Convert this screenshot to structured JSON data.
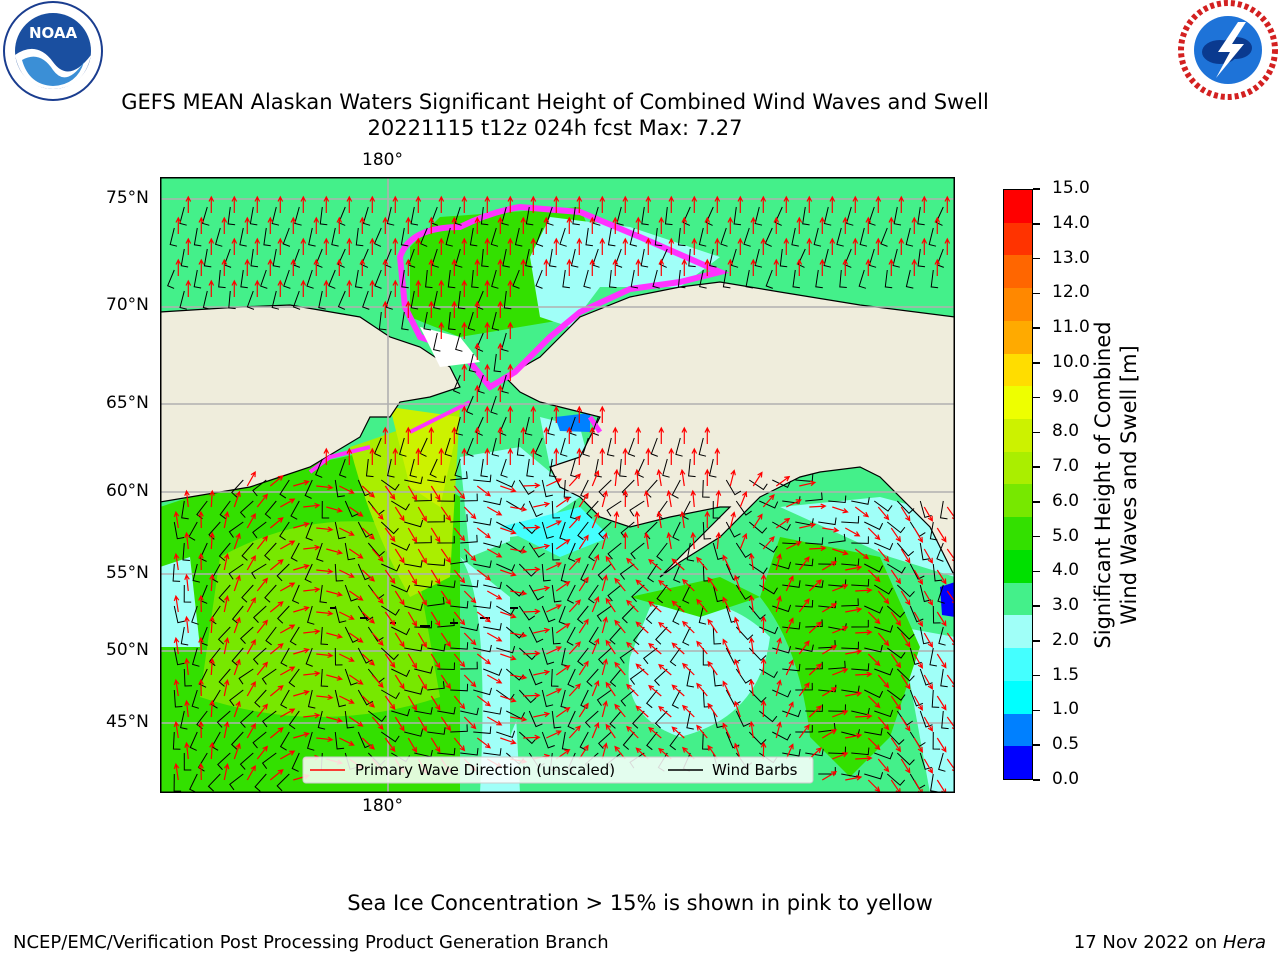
{
  "header": {
    "title_line1": "GEFS MEAN Alaskan Waters Significant Height of Combined Wind Waves and Swell",
    "title_line2": "20221115 t12z 024h fcst   Max: 7.27",
    "left_logo": {
      "icon": "noaa-logo-icon",
      "text": "NOAA"
    },
    "right_logo": {
      "icon": "nws-logo-icon"
    }
  },
  "map": {
    "lon_label_top": "180°",
    "lon_label_bottom": "180°",
    "lat_labels": [
      "75°N",
      "70°N",
      "65°N",
      "60°N",
      "55°N",
      "50°N",
      "45°N"
    ],
    "colors": {
      "land": "#efeddc",
      "sea_ice_edge": "#ff33ff",
      "wave_arrows": "#ff0000",
      "wind_barbs": "#000000",
      "grid": "#b0b0b0"
    },
    "legend": {
      "primary_wave": "Primary Wave Direction (unscaled)",
      "wind_barbs": "Wind Barbs"
    }
  },
  "colorbar": {
    "label_line1": "Significant Height of Combined",
    "label_line2": "Wind Waves and Swell [m]",
    "ticks": [
      "15.0",
      "14.0",
      "13.0",
      "12.0",
      "11.0",
      "10.0",
      "9.0",
      "8.0",
      "7.0",
      "6.0",
      "5.0",
      "4.0",
      "3.0",
      "2.0",
      "1.5",
      "1.0",
      "0.5",
      "0.0"
    ],
    "colors_top_to_bottom": [
      "#ff0000",
      "#ff3300",
      "#ff6600",
      "#ff8800",
      "#ffaa00",
      "#ffdd00",
      "#eeff00",
      "#ccf200",
      "#aaee00",
      "#77e800",
      "#33e000",
      "#00e000",
      "#44f08a",
      "#a0fff8",
      "#44ffff",
      "#00ffff",
      "#0080ff",
      "#0000ff"
    ]
  },
  "notes": {
    "sea_ice": "Sea Ice Concentration > 15% is shown in pink to yellow"
  },
  "footer": {
    "left": "NCEP/EMC/Verification Post Processing Product Generation Branch",
    "right_date": "17 Nov 2022 on ",
    "right_host": "Hera"
  }
}
